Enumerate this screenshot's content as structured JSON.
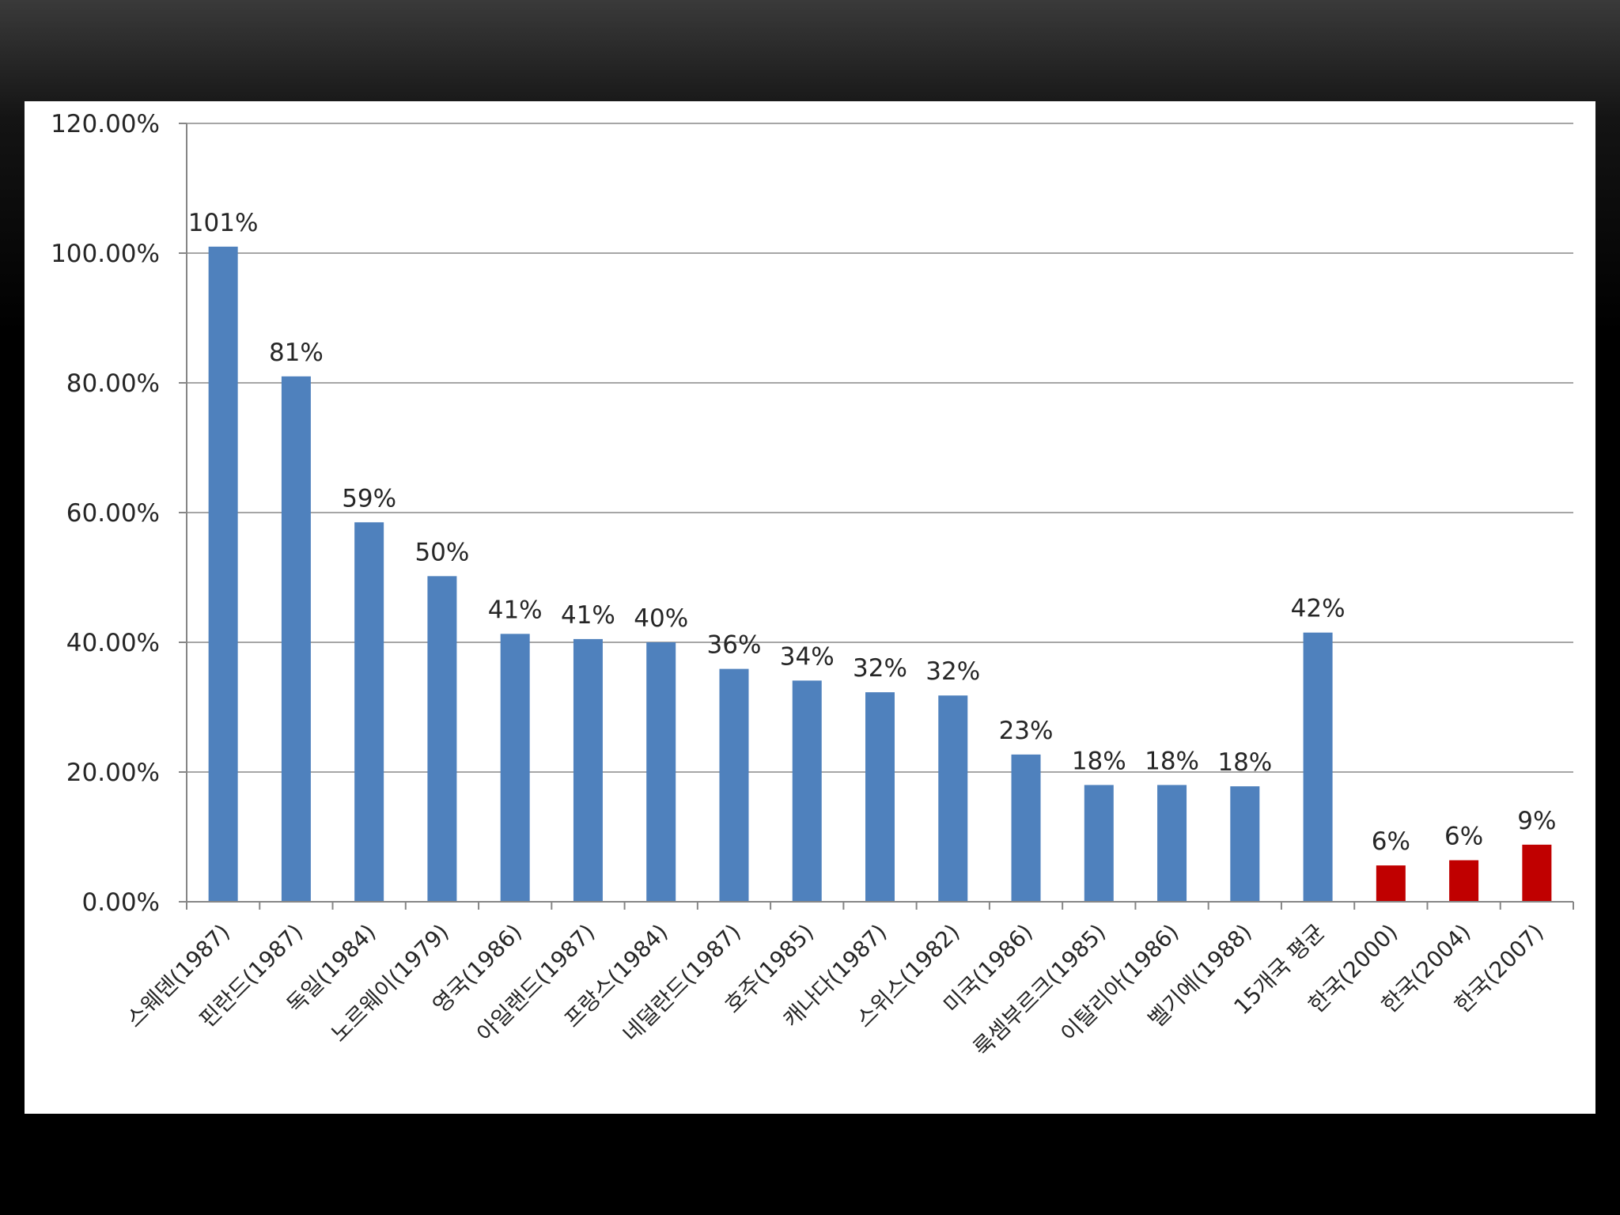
{
  "chart_data": {
    "type": "bar",
    "title": "",
    "xlabel": "",
    "ylabel": "",
    "ylim": [
      0,
      1.2
    ],
    "yticks": [
      "0.00%",
      "20.00%",
      "40.00%",
      "60.00%",
      "80.00%",
      "100.00%",
      "120.00%"
    ],
    "grid": true,
    "legend": "none",
    "categories": [
      "스웨덴(1987)",
      "핀란드(1987)",
      "독일(1984)",
      "노르웨이(1979)",
      "영국(1986)",
      "아일랜드(1987)",
      "프랑스(1984)",
      "네덜란드(1987)",
      "호주(1985)",
      "캐나다(1987)",
      "스위스(1982)",
      "미국(1986)",
      "룩셈부르크(1985)",
      "이탈리아(1986)",
      "벨기에(1988)",
      "15개국 평균",
      "한국(2000)",
      "한국(2004)",
      "한국(2007)"
    ],
    "values": [
      1.01,
      0.81,
      0.585,
      0.502,
      0.413,
      0.405,
      0.4,
      0.359,
      0.341,
      0.323,
      0.318,
      0.227,
      0.18,
      0.18,
      0.178,
      0.415,
      0.056,
      0.064,
      0.088
    ],
    "data_labels": [
      "101%",
      "81%",
      "59%",
      "50%",
      "41%",
      "41%",
      "40%",
      "36%",
      "34%",
      "32%",
      "32%",
      "23%",
      "18%",
      "18%",
      "18%",
      "42%",
      "6%",
      "6%",
      "9%"
    ],
    "bar_colors": [
      "#4f81bd",
      "#4f81bd",
      "#4f81bd",
      "#4f81bd",
      "#4f81bd",
      "#4f81bd",
      "#4f81bd",
      "#4f81bd",
      "#4f81bd",
      "#4f81bd",
      "#4f81bd",
      "#4f81bd",
      "#4f81bd",
      "#4f81bd",
      "#4f81bd",
      "#4f81bd",
      "#c00000",
      "#c00000",
      "#c00000"
    ],
    "colors": {
      "primary": "#4f81bd",
      "highlight": "#c00000",
      "gridline": "#a6a6a6",
      "axis": "#868686"
    }
  }
}
